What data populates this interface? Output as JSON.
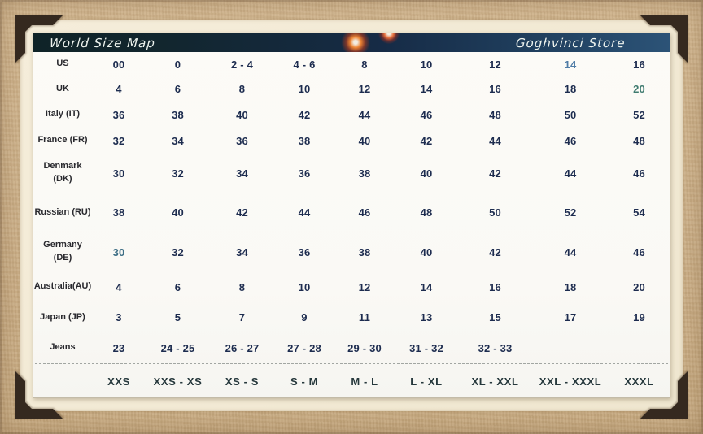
{
  "header": {
    "title": "World Size Map",
    "store_name": "Goghvinci Store"
  },
  "colors": {
    "frame_tan": "#cfb28a",
    "frame_liner": "#f2e9d4",
    "photo_corner_brown": "#35291f",
    "header_gradient_left": "#0f2327",
    "header_gradient_right": "#2c5377",
    "header_text": "#eef3ee",
    "flare_orange": "#ff7a2e",
    "value_text": "#1d2c4f",
    "row_label_text": "#29292e",
    "size_label_text": "#26383c"
  },
  "chart_data": {
    "type": "table",
    "title": "World Size Map",
    "columns": [
      "XXS",
      "XXS - XS",
      "XS - S",
      "S - M",
      "M - L",
      "L - XL",
      "XL - XXL",
      "XXL - XXXL",
      "XXXL"
    ],
    "rows": [
      {
        "label": "US",
        "values": [
          "00",
          "0",
          "2 - 4",
          "4 - 6",
          "8",
          "10",
          "12",
          "14",
          "16"
        ]
      },
      {
        "label": "UK",
        "values": [
          "4",
          "6",
          "8",
          "10",
          "12",
          "14",
          "16",
          "18",
          "20"
        ]
      },
      {
        "label": "Italy (IT)",
        "values": [
          "36",
          "38",
          "40",
          "42",
          "44",
          "46",
          "48",
          "50",
          "52"
        ]
      },
      {
        "label": "France (FR)",
        "values": [
          "32",
          "34",
          "36",
          "38",
          "40",
          "42",
          "44",
          "46",
          "48"
        ]
      },
      {
        "label": "Denmark (DK)",
        "wrap": true,
        "values": [
          "30",
          "32",
          "34",
          "36",
          "38",
          "40",
          "42",
          "44",
          "46"
        ]
      },
      {
        "label": "Russian (RU)",
        "values": [
          "38",
          "40",
          "42",
          "44",
          "46",
          "48",
          "50",
          "52",
          "54"
        ]
      },
      {
        "label": "Germany (DE)",
        "wrap": true,
        "values": [
          "30",
          "32",
          "34",
          "36",
          "38",
          "40",
          "42",
          "44",
          "46"
        ]
      },
      {
        "label": "Australia(AU)",
        "values": [
          "4",
          "6",
          "8",
          "10",
          "12",
          "14",
          "16",
          "18",
          "20"
        ]
      },
      {
        "label": "Japan (JP)",
        "values": [
          "3",
          "5",
          "7",
          "9",
          "11",
          "13",
          "15",
          "17",
          "19"
        ]
      },
      {
        "label": "Jeans",
        "values": [
          "23",
          "24 - 25",
          "26 - 27",
          "27 - 28",
          "29 - 30",
          "31 - 32",
          "32 - 33",
          "",
          ""
        ]
      }
    ],
    "size_labels": [
      "XXS",
      "XXS - XS",
      "XS - S",
      "S - M",
      "M - L",
      "L - XL",
      "XL - XXL",
      "XXL - XXXL",
      "XXXL"
    ],
    "tinted_cells": [
      {
        "row": 0,
        "col": 7,
        "color": "#4f7ca6"
      },
      {
        "row": 1,
        "col": 8,
        "color": "#3f7a6f"
      },
      {
        "row": 6,
        "col": 0,
        "color": "#3d6e85"
      }
    ]
  }
}
